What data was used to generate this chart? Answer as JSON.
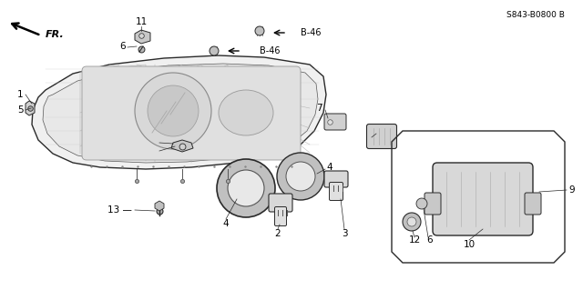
{
  "bg_color": "#ffffff",
  "fig_width": 6.4,
  "fig_height": 3.19,
  "dpi": 100,
  "diagram_note": "S843-B0800 B",
  "fr_label": "FR.",
  "label_fontsize": 7.5,
  "note_fontsize": 6.5
}
